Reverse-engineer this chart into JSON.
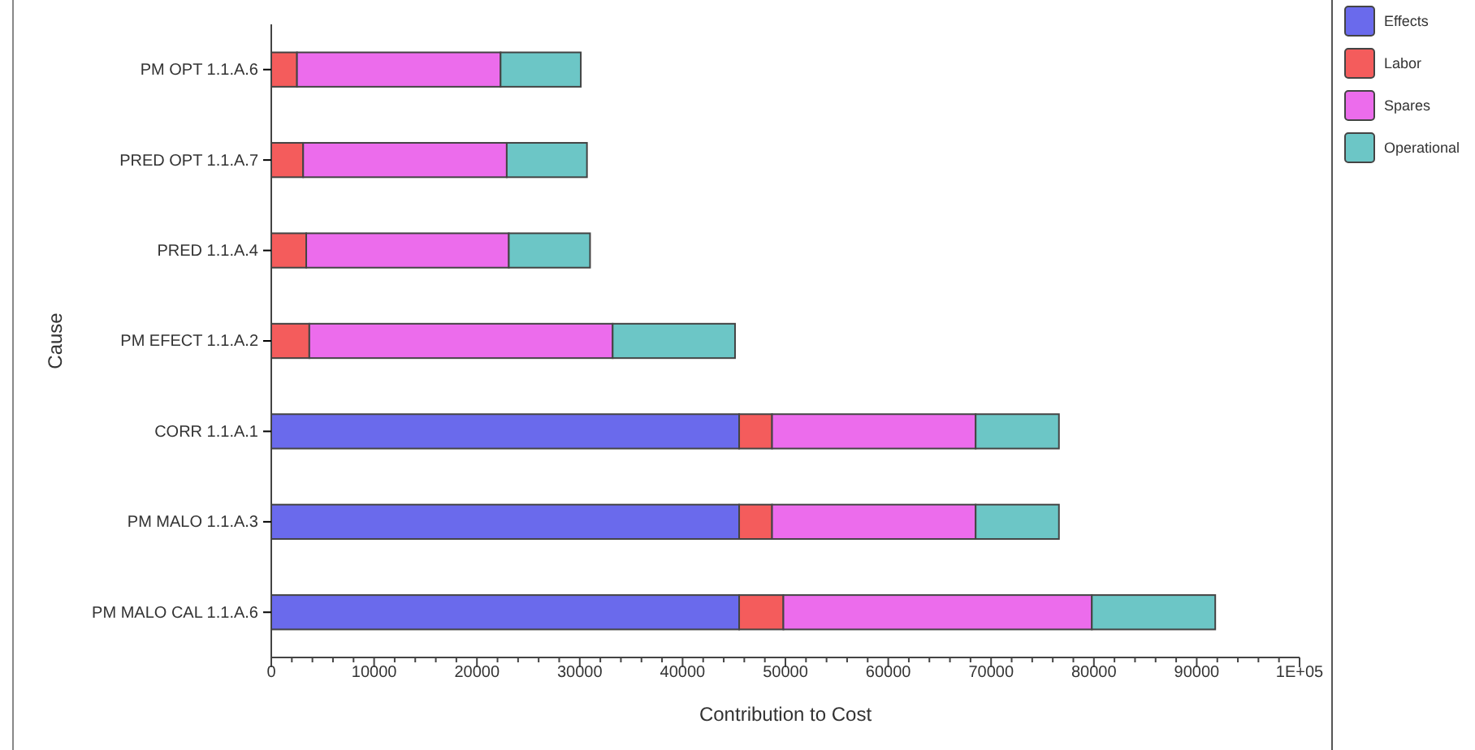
{
  "chart_data": {
    "type": "bar",
    "orientation": "horizontal",
    "stacked": true,
    "xlabel": "Contribution to Cost",
    "ylabel": "Cause",
    "categories": [
      "PM OPT 1.1.A.6",
      "PRED OPT 1.1.A.7",
      "PRED 1.1.A.4",
      "PM EFECT 1.1.A.2",
      "CORR 1.1.A.1",
      "PM MALO 1.1.A.3",
      "PM MALO CAL 1.1.A.6"
    ],
    "series": [
      {
        "name": "Effects",
        "color": "#6a6aec",
        "values": [
          0,
          0,
          0,
          0,
          45500,
          45500,
          45500
        ]
      },
      {
        "name": "Labor",
        "color": "#f45c5c",
        "values": [
          2500,
          3100,
          3400,
          3700,
          3200,
          3200,
          4300
        ]
      },
      {
        "name": "Spares",
        "color": "#ec6cec",
        "values": [
          19800,
          19800,
          19700,
          29500,
          19800,
          19800,
          30000
        ]
      },
      {
        "name": "Operational",
        "color": "#6cc6c6",
        "values": [
          7800,
          7800,
          7900,
          11900,
          8100,
          8100,
          12000
        ]
      }
    ],
    "xlim": [
      0,
      100000
    ],
    "xticks": [
      0,
      {
        "value": 2000,
        "label": null
      },
      {
        "value": 4000,
        "label": null
      },
      {
        "value": 6000,
        "label": null
      },
      {
        "value": 8000,
        "label": null
      },
      10000,
      {
        "value": 12000,
        "label": null
      },
      {
        "value": 14000,
        "label": null
      },
      {
        "value": 16000,
        "label": null
      },
      {
        "value": 18000,
        "label": null
      },
      20000,
      {
        "value": 22000,
        "label": null
      },
      {
        "value": 24000,
        "label": null
      },
      {
        "value": 26000,
        "label": null
      },
      {
        "value": 28000,
        "label": null
      },
      30000,
      {
        "value": 32000,
        "label": null
      },
      {
        "value": 34000,
        "label": null
      },
      {
        "value": 36000,
        "label": null
      },
      {
        "value": 38000,
        "label": null
      },
      40000,
      {
        "value": 42000,
        "label": null
      },
      {
        "value": 44000,
        "label": null
      },
      {
        "value": 46000,
        "label": null
      },
      {
        "value": 48000,
        "label": null
      },
      50000,
      {
        "value": 52000,
        "label": null
      },
      {
        "value": 54000,
        "label": null
      },
      {
        "value": 56000,
        "label": null
      },
      {
        "value": 58000,
        "label": null
      },
      60000,
      {
        "value": 62000,
        "label": null
      },
      {
        "value": 64000,
        "label": null
      },
      {
        "value": 66000,
        "label": null
      },
      {
        "value": 68000,
        "label": null
      },
      70000,
      {
        "value": 72000,
        "label": null
      },
      {
        "value": 74000,
        "label": null
      },
      {
        "value": 76000,
        "label": null
      },
      {
        "value": 78000,
        "label": null
      },
      80000,
      {
        "value": 82000,
        "label": null
      },
      {
        "value": 84000,
        "label": null
      },
      {
        "value": 86000,
        "label": null
      },
      {
        "value": 88000,
        "label": null
      },
      90000,
      {
        "value": 92000,
        "label": null
      },
      {
        "value": 94000,
        "label": null
      },
      {
        "value": 96000,
        "label": null
      },
      {
        "value": 98000,
        "label": null
      },
      {
        "value": 100000,
        "label": "1E+05"
      }
    ],
    "grid": false,
    "legend": "top right"
  }
}
